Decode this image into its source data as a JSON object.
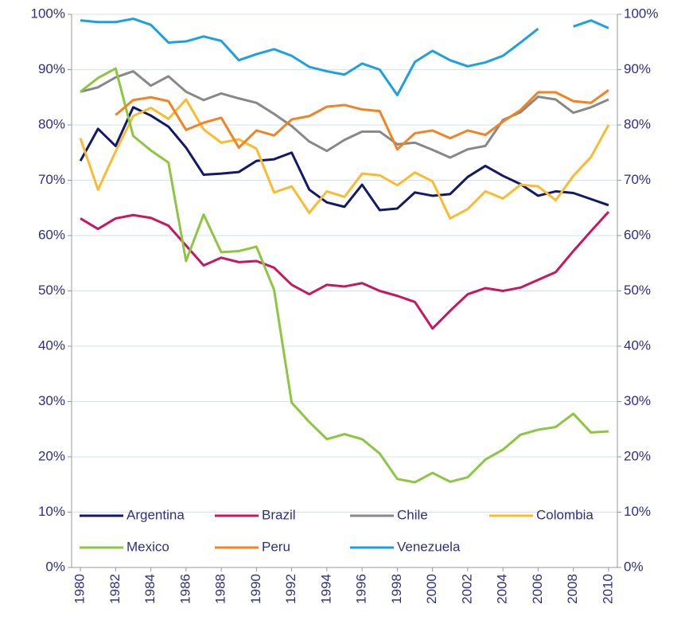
{
  "chart_data": {
    "type": "line",
    "x": [
      1980,
      1981,
      1982,
      1983,
      1984,
      1985,
      1986,
      1987,
      1988,
      1989,
      1990,
      1991,
      1992,
      1993,
      1994,
      1995,
      1996,
      1997,
      1998,
      1999,
      2000,
      2001,
      2002,
      2003,
      2004,
      2005,
      2006,
      2007,
      2008,
      2009,
      2010
    ],
    "xlim": [
      1979.5,
      2010.5
    ],
    "xticks": [
      1980,
      1982,
      1984,
      1986,
      1988,
      1990,
      1992,
      1994,
      1996,
      1998,
      2000,
      2002,
      2004,
      2006,
      2008,
      2010
    ],
    "ylim": [
      0,
      100
    ],
    "yticks": [
      {
        "value": 0,
        "label": "0%"
      },
      {
        "value": 10,
        "label": "10%"
      },
      {
        "value": 20,
        "label": "20%"
      },
      {
        "value": 30,
        "label": "30%"
      },
      {
        "value": 40,
        "label": "40%"
      },
      {
        "value": 50,
        "label": "50%"
      },
      {
        "value": 60,
        "label": "60%"
      },
      {
        "value": 70,
        "label": "70%"
      },
      {
        "value": 80,
        "label": "80%"
      },
      {
        "value": 90,
        "label": "90%"
      },
      {
        "value": 100,
        "label": "100%"
      }
    ],
    "y2lim": [
      0,
      100
    ],
    "y2ticks": [
      {
        "value": 0,
        "label": "0%"
      },
      {
        "value": 10,
        "label": "10%"
      },
      {
        "value": 20,
        "label": "20%"
      },
      {
        "value": 30,
        "label": "30%"
      },
      {
        "value": 40,
        "label": "40%"
      },
      {
        "value": 50,
        "label": "50%"
      },
      {
        "value": 60,
        "label": "60%"
      },
      {
        "value": 70,
        "label": "70%"
      },
      {
        "value": 80,
        "label": "80%"
      },
      {
        "value": 90,
        "label": "90%"
      },
      {
        "value": 100,
        "label": "100%"
      }
    ],
    "grid": true,
    "legend": "bottom-left",
    "series": [
      {
        "name": "Argentina",
        "color": "#12196b",
        "values": [
          73.5,
          79.3,
          76.2,
          83.2,
          81.7,
          79.7,
          75.9,
          71.0,
          71.2,
          71.5,
          73.5,
          73.8,
          75.0,
          68.3,
          66.0,
          65.2,
          69.2,
          64.6,
          64.9,
          67.8,
          67.2,
          67.5,
          70.6,
          72.6,
          70.8,
          69.3,
          67.2,
          68.0,
          67.7,
          66.6,
          65.5
        ]
      },
      {
        "name": "Brazil",
        "color": "#c8175f",
        "values": [
          63.1,
          61.2,
          63.1,
          63.7,
          63.2,
          61.8,
          58.2,
          54.6,
          56.0,
          55.2,
          55.4,
          54.2,
          51.1,
          49.4,
          51.1,
          50.8,
          51.4,
          50.0,
          49.1,
          48.0,
          43.2,
          46.4,
          49.4,
          50.5,
          50.0,
          50.6,
          52.0,
          53.4,
          57.2,
          60.8,
          64.3
        ]
      },
      {
        "name": "Chile",
        "color": "#888888",
        "values": [
          86.0,
          86.8,
          88.6,
          89.7,
          87.1,
          88.8,
          86.0,
          84.5,
          85.7,
          84.8,
          84.0,
          82.0,
          79.8,
          77.0,
          75.3,
          77.3,
          78.8,
          78.8,
          76.5,
          76.8,
          75.5,
          74.1,
          75.6,
          76.2,
          80.9,
          82.3,
          85.1,
          84.6,
          82.2,
          83.2,
          84.6
        ]
      },
      {
        "name": "Colombia",
        "color": "#fbbb2e",
        "values": [
          77.6,
          68.3,
          75.2,
          81.6,
          83.1,
          81.1,
          84.6,
          79.2,
          76.8,
          77.4,
          75.7,
          67.8,
          68.9,
          64.1,
          68.0,
          67.0,
          71.2,
          70.9,
          69.1,
          71.4,
          69.8,
          63.1,
          64.8,
          68.0,
          66.7,
          69.2,
          68.9,
          66.4,
          70.8,
          74.2,
          80.0
        ]
      },
      {
        "name": "Mexico",
        "color": "#8dc63f",
        "values": [
          86.0,
          88.5,
          90.2,
          78.0,
          75.4,
          73.2,
          55.4,
          63.8,
          57.0,
          57.2,
          58.0,
          50.2,
          29.8,
          26.3,
          23.2,
          24.1,
          23.2,
          20.6,
          16.0,
          15.4,
          17.1,
          15.5,
          16.3,
          19.5,
          21.3,
          24.0,
          24.9,
          25.4,
          27.8,
          24.4,
          24.6
        ]
      },
      {
        "name": "Peru",
        "color": "#f58220",
        "values": [
          null,
          null,
          81.8,
          84.5,
          85.0,
          84.3,
          79.1,
          80.4,
          81.3,
          75.9,
          79.0,
          78.1,
          81.0,
          81.6,
          83.3,
          83.6,
          82.8,
          82.5,
          75.6,
          78.5,
          79.0,
          77.6,
          79.0,
          78.2,
          80.6,
          82.7,
          85.9,
          85.9,
          84.3,
          84.0,
          86.3
        ]
      },
      {
        "name": "Venezuela",
        "color": "#1ba1e2",
        "values": [
          98.9,
          98.6,
          98.6,
          99.2,
          98.1,
          94.9,
          95.1,
          96.0,
          95.2,
          91.7,
          92.8,
          93.7,
          92.5,
          90.5,
          89.7,
          89.1,
          91.1,
          90.0,
          85.4,
          91.4,
          93.4,
          91.7,
          90.6,
          91.3,
          92.5,
          94.9,
          97.4,
          null,
          97.8,
          98.9,
          97.5
        ]
      }
    ]
  }
}
